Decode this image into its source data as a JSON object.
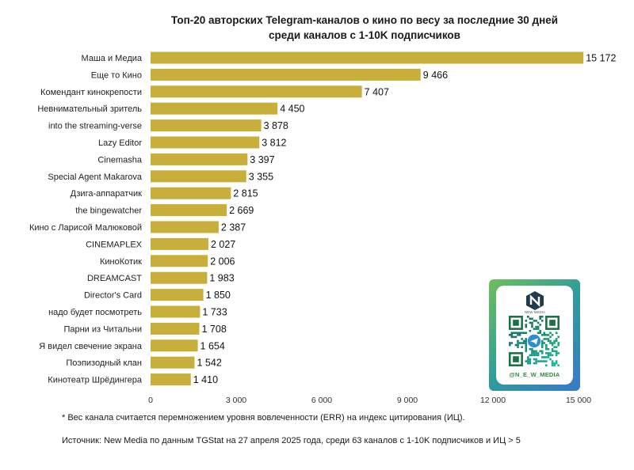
{
  "chart_data": {
    "type": "bar",
    "orientation": "horizontal",
    "title": [
      "Топ-20 авторских Telegram-каналов о кино по весу за последние 30 дней",
      "среди каналов с 1-10K подписчиков"
    ],
    "categories": [
      "Маша и Медиа",
      "Еще то Кино",
      "Комендант кинокрепости",
      "Невнимательный зритель",
      "into the streaming-verse",
      "Lazy Editor",
      "Cinemasha",
      "Special Agent Makarova",
      "Дзига-аппаратчик",
      "the bingewatcher",
      "Кино с Ларисой Малюковой",
      "CINEMAPLEX",
      "КиноКотик",
      "DREAMCAST",
      "Director's Card",
      "надо будет посмотреть",
      "Парни из Читальни",
      "Я видел свечение экрана",
      "Поэпизодный клан",
      "Кинотеатр Шрёдингера"
    ],
    "values": [
      15172,
      9466,
      7407,
      4450,
      3878,
      3812,
      3397,
      3355,
      2815,
      2669,
      2387,
      2027,
      2006,
      1983,
      1850,
      1733,
      1708,
      1654,
      1542,
      1410
    ],
    "value_labels": [
      "15 172",
      "9 466",
      "7 407",
      "4 450",
      "3 878",
      "3 812",
      "3 397",
      "3 355",
      "2 815",
      "2 669",
      "2 387",
      "2 027",
      "2 006",
      "1 983",
      "1 850",
      "1 733",
      "1 708",
      "1 654",
      "1 542",
      "1 410"
    ],
    "xlim": [
      0,
      15000
    ],
    "xticks": [
      0,
      3000,
      6000,
      9000,
      12000,
      15000
    ],
    "xtick_labels": [
      "0",
      "3 000",
      "6 000",
      "9 000",
      "12 000",
      "15 000"
    ],
    "xlabel": "",
    "ylabel": "",
    "grid": false,
    "legend": "none",
    "bar_color": "#c8ae3b"
  },
  "footnote": "* Вес канала считается перемножением уровня вовлеченности (ERR) на индекс цитирования (ИЦ).",
  "source": "Источник: New Media по данным TGStat на 27 апреля 2025 года, среди 63 каналов с 1-10K подписчиков и ИЦ > 5",
  "qr": {
    "handle": "@N_E_W_MEDIA",
    "logo_caption": "NEW MEDIA"
  },
  "colors": {
    "bar": "#c8ae3b",
    "qr_gradient": [
      "#6fbf5a",
      "#2f9d9a",
      "#3a78c9"
    ],
    "qr_label": "#2c8d3a"
  }
}
